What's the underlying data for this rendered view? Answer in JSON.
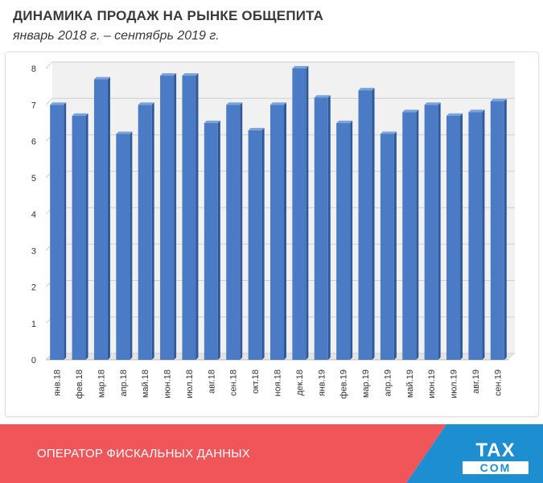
{
  "header": {
    "title": "ДИНАМИКА ПРОДАЖ НА РЫНКЕ ОБЩЕПИТА",
    "subtitle": "январь 2018 г. – сентябрь 2019 г."
  },
  "footer": {
    "text": "ОПЕРАТОР ФИСКАЛЬНЫХ ДАННЫХ",
    "logo_top": "TAX",
    "logo_bottom": "COM",
    "colors": {
      "red": "#f0555a",
      "blue": "#1d8fd0"
    }
  },
  "chart_data": {
    "type": "bar",
    "title": "",
    "xlabel": "",
    "ylabel": "",
    "categories": [
      "янв.18",
      "фев.18",
      "мар.18",
      "апр.18",
      "май.18",
      "июн.18",
      "июл.18",
      "авг.18",
      "сен.18",
      "окт.18",
      "ноя.18",
      "дек.18",
      "янв.19",
      "фев.19",
      "мар.19",
      "апр.19",
      "май.19",
      "июн.19",
      "июл.19",
      "авг.19",
      "сен.19"
    ],
    "values": [
      7.0,
      6.7,
      7.7,
      6.2,
      7.0,
      7.8,
      7.8,
      6.5,
      7.0,
      6.3,
      7.0,
      8.0,
      7.2,
      6.5,
      7.4,
      6.2,
      6.8,
      7.0,
      6.7,
      6.8,
      7.1
    ],
    "ylim": [
      0,
      8
    ],
    "yticks": [
      0,
      1,
      2,
      3,
      4,
      5,
      6,
      7,
      8
    ],
    "grid": true,
    "legend": "none",
    "bar_color": "#4a7bc4",
    "bar_side_color": "#2f5a99",
    "bar_top_color": "#7aa3dc",
    "wall_color": "#f1f1f1"
  }
}
